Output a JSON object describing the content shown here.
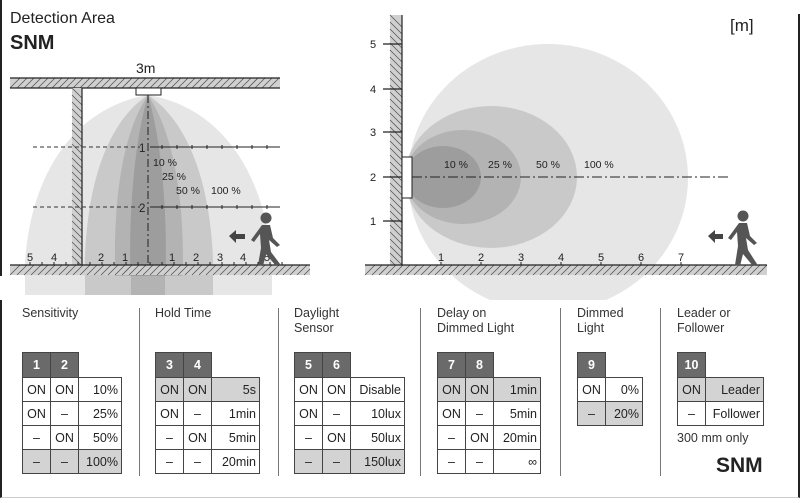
{
  "header": {
    "title": "Detection Area",
    "model": "SNM",
    "unit": "[m]"
  },
  "ceiling_view": {
    "height_label": "3m",
    "depth_labels": [
      "1",
      "2"
    ],
    "floor_labels": [
      "5",
      "4",
      "2",
      "1",
      "1",
      "2",
      "3",
      "4",
      "5"
    ],
    "zone_labels": [
      "10 %",
      "25 %",
      "50 %",
      "100 %"
    ]
  },
  "wall_view": {
    "y_labels": [
      "5",
      "4",
      "3",
      "2",
      "1"
    ],
    "x_labels": [
      "1",
      "2",
      "3",
      "4",
      "5",
      "6",
      "7"
    ],
    "zone_labels": [
      "10 %",
      "25 %",
      "50 %",
      "100 %"
    ]
  },
  "colors": {
    "zone_100": "#e6e6e6",
    "zone_50": "#c9c9c9",
    "zone_25": "#b3b3b3",
    "zone_10": "#9d9d9d",
    "header_cell": "#6a6a6a",
    "highlight_row": "#d3d3d3"
  },
  "settings": [
    {
      "title": [
        "Sensitivity"
      ],
      "switches": [
        "1",
        "2"
      ],
      "default_row": 3,
      "rows": [
        [
          "ON",
          "ON",
          "10%"
        ],
        [
          "ON",
          "–",
          "25%"
        ],
        [
          "–",
          "ON",
          "50%"
        ],
        [
          "–",
          "–",
          "100%"
        ]
      ]
    },
    {
      "title": [
        "Hold Time"
      ],
      "switches": [
        "3",
        "4"
      ],
      "default_row": 0,
      "rows": [
        [
          "ON",
          "ON",
          "5s"
        ],
        [
          "ON",
          "–",
          "1min"
        ],
        [
          "–",
          "ON",
          "5min"
        ],
        [
          "–",
          "–",
          "20min"
        ]
      ]
    },
    {
      "title": [
        "Daylight",
        "Sensor"
      ],
      "switches": [
        "5",
        "6"
      ],
      "default_row": 3,
      "rows": [
        [
          "ON",
          "ON",
          "Disable"
        ],
        [
          "ON",
          "–",
          "10lux"
        ],
        [
          "–",
          "ON",
          "50lux"
        ],
        [
          "–",
          "–",
          "150lux"
        ]
      ]
    },
    {
      "title": [
        "Delay on",
        "Dimmed Light"
      ],
      "switches": [
        "7",
        "8"
      ],
      "default_row": 0,
      "rows": [
        [
          "ON",
          "ON",
          "1min"
        ],
        [
          "ON",
          "–",
          "5min"
        ],
        [
          "–",
          "ON",
          "20min"
        ],
        [
          "–",
          "–",
          "∞"
        ]
      ]
    },
    {
      "title": [
        "Dimmed",
        "Light"
      ],
      "switches": [
        "9"
      ],
      "default_row": 1,
      "rows": [
        [
          "ON",
          "0%"
        ],
        [
          "–",
          "20%"
        ]
      ]
    },
    {
      "title": [
        "Leader or",
        "Follower"
      ],
      "switches": [
        "10"
      ],
      "default_row": 0,
      "rows": [
        [
          "ON",
          "Leader"
        ],
        [
          "–",
          "Follower"
        ]
      ]
    }
  ],
  "footer": {
    "note": "300 mm only",
    "model": "SNM"
  }
}
